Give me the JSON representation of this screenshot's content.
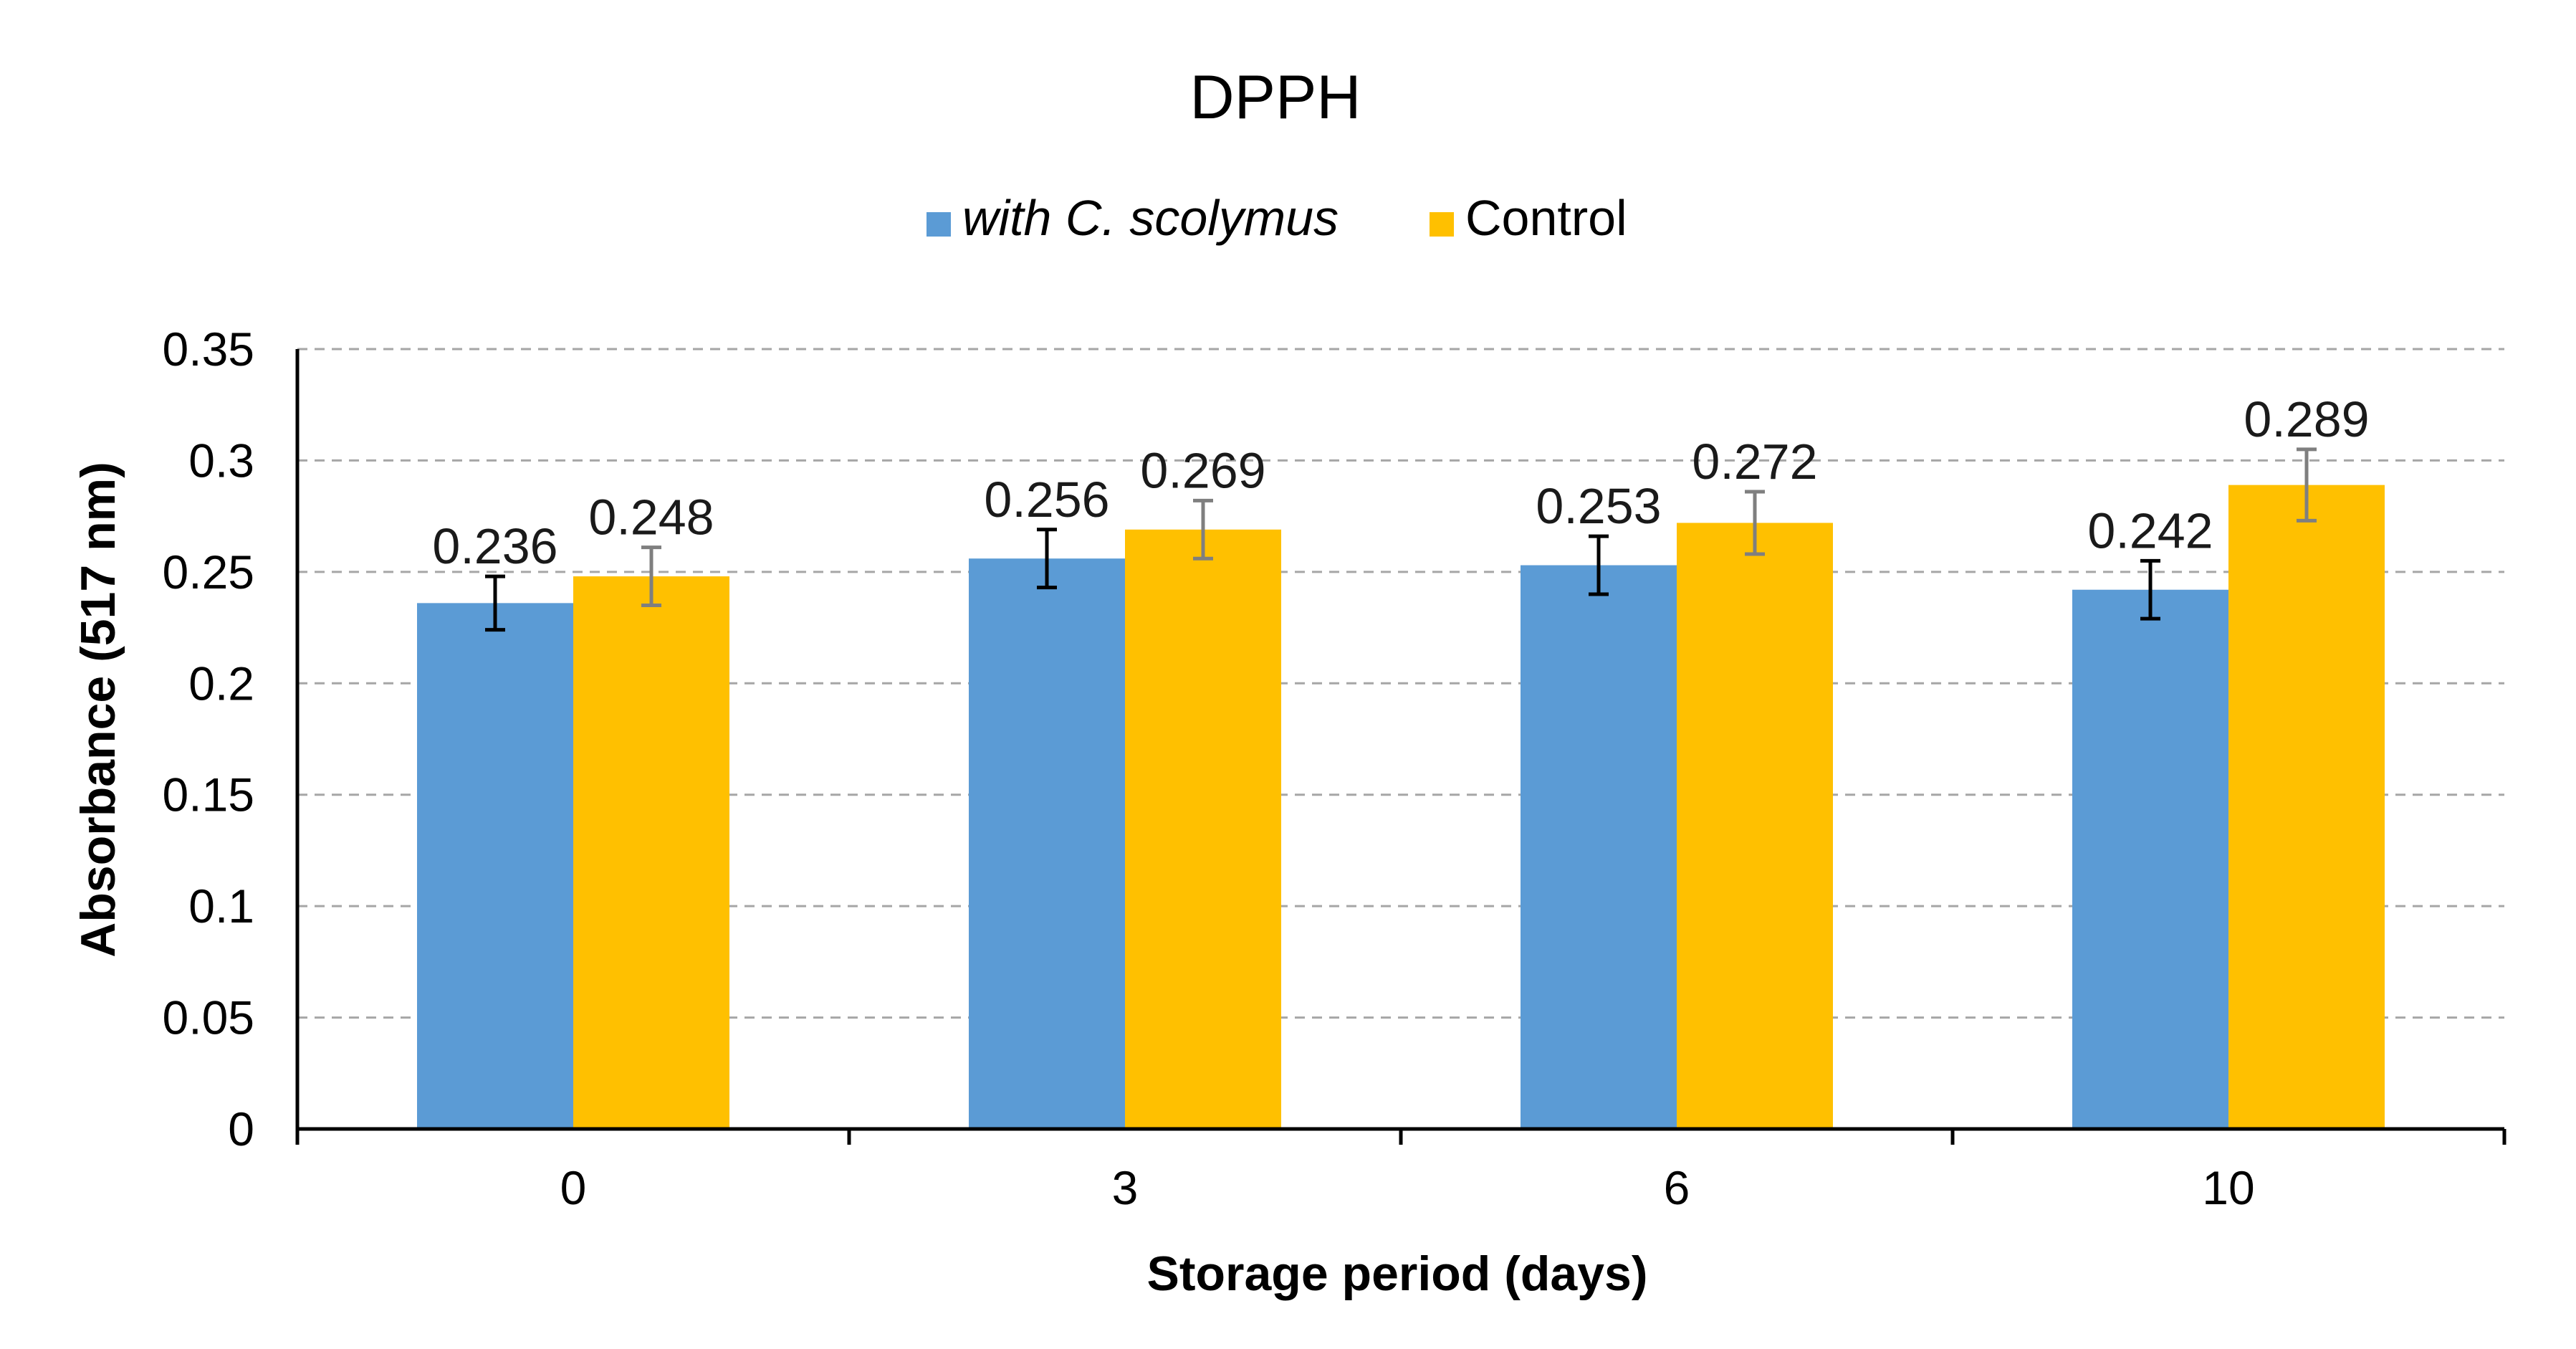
{
  "chart_data": {
    "type": "bar",
    "title": "DPPH",
    "xlabel": "Storage period (days)",
    "ylabel": "Absorbance (517 nm)",
    "ylim": [
      0,
      0.35
    ],
    "yticks": [
      0,
      0.05,
      0.1,
      0.15,
      0.2,
      0.25,
      0.3,
      0.35
    ],
    "ytick_labels": [
      "0",
      "0.05",
      "0.1",
      "0.15",
      "0.2",
      "0.25",
      "0.3",
      "0.35"
    ],
    "grid": true,
    "legend_position": "top-center",
    "categories": [
      "0",
      "3",
      "6",
      "10"
    ],
    "series": [
      {
        "name": "with C. scolymus",
        "color": "#5b9bd5",
        "values": [
          0.236,
          0.256,
          0.253,
          0.242
        ],
        "labels": [
          "0.236",
          "0.256",
          "0.253",
          "0.242"
        ],
        "errors": [
          0.012,
          0.013,
          0.013,
          0.013
        ],
        "error_color": "#000000"
      },
      {
        "name": "Control",
        "color": "#ffc000",
        "values": [
          0.248,
          0.269,
          0.272,
          0.289
        ],
        "labels": [
          "0.248",
          "0.269",
          "0.272",
          "0.289"
        ],
        "errors": [
          0.013,
          0.013,
          0.014,
          0.016
        ],
        "error_color": "#7f7f7f"
      }
    ]
  }
}
